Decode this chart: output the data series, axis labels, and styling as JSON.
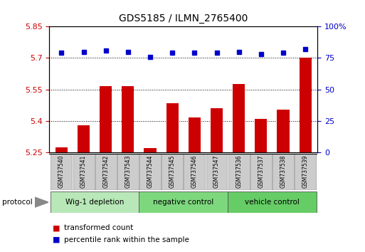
{
  "title": "GDS5185 / ILMN_2765400",
  "samples": [
    "GSM737540",
    "GSM737541",
    "GSM737542",
    "GSM737543",
    "GSM737544",
    "GSM737545",
    "GSM737546",
    "GSM737547",
    "GSM737536",
    "GSM737537",
    "GSM737538",
    "GSM737539"
  ],
  "bar_values": [
    5.275,
    5.38,
    5.565,
    5.565,
    5.27,
    5.485,
    5.415,
    5.46,
    5.575,
    5.41,
    5.455,
    5.7
  ],
  "dot_values": [
    79,
    80,
    81,
    80,
    76,
    79,
    79,
    79,
    80,
    78,
    79,
    82
  ],
  "ylim_left": [
    5.25,
    5.85
  ],
  "ylim_right": [
    0,
    100
  ],
  "yticks_left": [
    5.25,
    5.4,
    5.55,
    5.7,
    5.85
  ],
  "yticks_right": [
    0,
    25,
    50,
    75,
    100
  ],
  "ytick_labels_left": [
    "5.25",
    "5.4",
    "5.55",
    "5.7",
    "5.85"
  ],
  "ytick_labels_right": [
    "0",
    "25",
    "50",
    "75",
    "100%"
  ],
  "hlines": [
    5.4,
    5.55,
    5.7
  ],
  "bar_color": "#cc0000",
  "dot_color": "#0000cc",
  "bar_bottom": 5.25,
  "groups": [
    {
      "label": "Wig-1 depletion",
      "start": 0,
      "end": 4
    },
    {
      "label": "negative control",
      "start": 4,
      "end": 8
    },
    {
      "label": "vehicle control",
      "start": 8,
      "end": 12
    }
  ],
  "group_colors": [
    "#b8e8b8",
    "#7dd87d",
    "#66cc66"
  ],
  "protocol_label": "protocol",
  "legend_items": [
    {
      "color": "#cc0000",
      "label": "transformed count"
    },
    {
      "color": "#0000cc",
      "label": "percentile rank within the sample"
    }
  ],
  "tick_label_color_left": "#cc0000",
  "tick_label_color_right": "#0000cc",
  "sample_box_color": "#cccccc",
  "sample_box_edge": "#aaaaaa"
}
